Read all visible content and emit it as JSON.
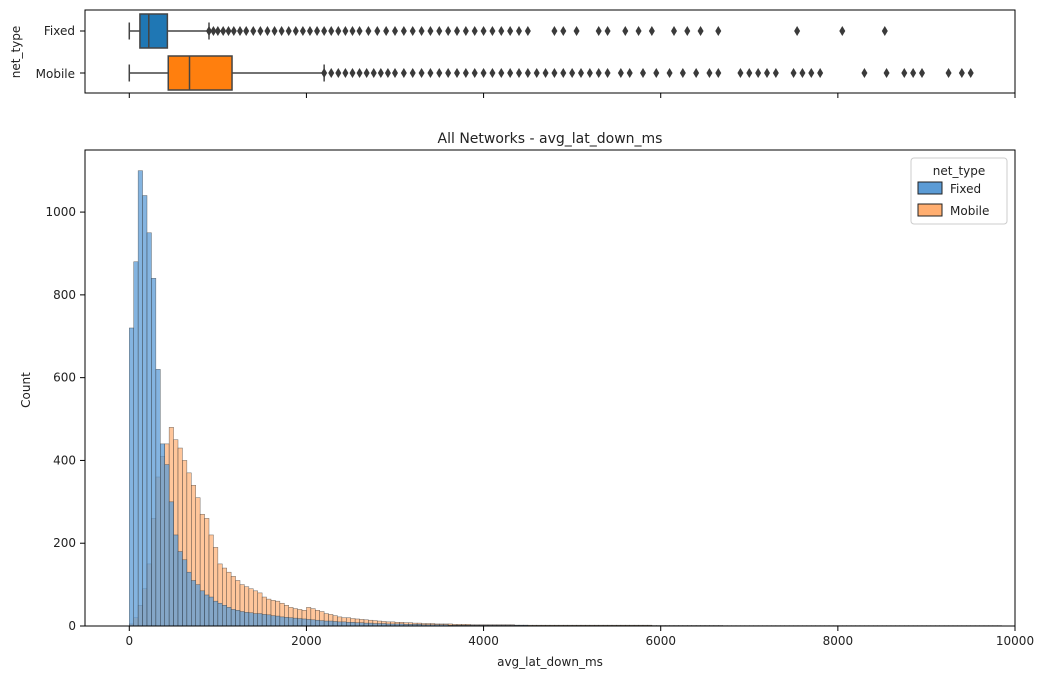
{
  "chart_data": [
    {
      "type": "box",
      "title": "",
      "xlabel": "",
      "ylabel": "net_type",
      "categories": [
        "Fixed",
        "Mobile"
      ],
      "xlim": [
        -500,
        10000
      ],
      "boxes": [
        {
          "name": "Fixed",
          "color": "#1f77b4",
          "min": 0,
          "q1": 120,
          "median": 220,
          "q3": 430,
          "whisker_high": 900,
          "outliers": [
            900,
            950,
            1000,
            1060,
            1120,
            1180,
            1250,
            1320,
            1400,
            1480,
            1560,
            1640,
            1720,
            1800,
            1880,
            1960,
            2040,
            2120,
            2200,
            2280,
            2360,
            2440,
            2520,
            2600,
            2700,
            2800,
            2900,
            3000,
            3100,
            3200,
            3300,
            3400,
            3500,
            3600,
            3700,
            3800,
            3900,
            4000,
            4100,
            4200,
            4300,
            4400,
            4500,
            4800,
            4900,
            5050,
            5300,
            5400,
            5600,
            5750,
            5900,
            6150,
            6300,
            6450,
            6650,
            7540,
            8050,
            8530
          ]
        },
        {
          "name": "Mobile",
          "color": "#ff7f0e",
          "min": 0,
          "q1": 440,
          "median": 680,
          "q3": 1160,
          "whisker_high": 2200,
          "outliers": [
            2200,
            2280,
            2360,
            2440,
            2520,
            2600,
            2680,
            2760,
            2840,
            2920,
            3000,
            3100,
            3200,
            3300,
            3400,
            3500,
            3600,
            3700,
            3800,
            3900,
            4000,
            4100,
            4200,
            4300,
            4400,
            4500,
            4600,
            4700,
            4800,
            4900,
            5000,
            5100,
            5200,
            5300,
            5400,
            5550,
            5650,
            5800,
            5950,
            6100,
            6250,
            6400,
            6550,
            6650,
            6900,
            7000,
            7100,
            7200,
            7300,
            7500,
            7600,
            7700,
            7800,
            8300,
            8550,
            8750,
            8850,
            8950,
            9250,
            9400,
            9500
          ]
        }
      ],
      "axis_ticks": [
        "0",
        "2000",
        "4000",
        "6000",
        "8000",
        "10000"
      ]
    },
    {
      "type": "bar",
      "title": "All Networks - avg_lat_down_ms",
      "xlabel": "avg_lat_down_ms",
      "ylabel": "Count",
      "xlim": [
        -500,
        10000
      ],
      "ylim": [
        0,
        1150
      ],
      "xticks": [
        0,
        2000,
        4000,
        6000,
        8000,
        10000
      ],
      "xtick_labels": [
        "0",
        "2000",
        "4000",
        "6000",
        "8000",
        "10000"
      ],
      "yticks": [
        0,
        200,
        400,
        600,
        800,
        1000
      ],
      "ytick_labels": [
        "0",
        "200",
        "400",
        "600",
        "800",
        "1000"
      ],
      "bin_start": 0,
      "bin_width": 50,
      "legend": {
        "title": "net_type",
        "position": "top-right",
        "entries": [
          "Fixed",
          "Mobile"
        ]
      },
      "series": [
        {
          "name": "Fixed",
          "color": "#5b9bd5",
          "values": [
            720,
            880,
            1100,
            1040,
            950,
            840,
            620,
            440,
            390,
            300,
            220,
            180,
            160,
            130,
            110,
            100,
            85,
            75,
            70,
            60,
            55,
            50,
            45,
            40,
            38,
            35,
            33,
            32,
            30,
            30,
            28,
            27,
            25,
            24,
            22,
            21,
            20,
            19,
            18,
            17,
            16,
            15,
            14,
            13,
            12,
            12,
            11,
            10,
            10,
            9,
            9,
            8,
            8,
            7,
            7,
            6,
            6,
            6,
            5,
            5,
            5,
            5,
            4,
            4,
            4,
            4,
            3,
            3,
            3,
            3,
            3,
            3,
            2,
            2,
            2,
            2,
            2,
            2,
            2,
            2,
            2,
            2,
            2,
            2,
            2,
            2,
            2,
            2,
            2,
            2,
            1,
            1,
            1,
            1,
            1,
            1,
            1,
            1,
            1,
            1,
            1,
            1,
            1,
            1,
            1,
            1,
            1,
            1,
            1,
            1,
            1,
            1,
            1,
            1,
            1,
            1,
            1,
            1,
            1,
            1,
            1,
            1,
            1,
            1,
            1,
            1,
            1,
            1,
            1,
            1,
            1,
            1,
            1,
            1,
            0,
            0,
            0,
            0,
            0,
            0,
            0,
            0,
            0,
            0,
            0,
            0,
            0,
            0,
            0,
            0,
            0,
            0,
            0,
            0,
            0,
            0,
            0,
            0,
            0,
            0,
            0,
            0,
            0,
            0,
            0,
            0,
            0,
            0,
            0,
            0,
            0,
            0,
            0,
            0,
            0,
            0,
            0,
            0,
            0,
            0,
            0,
            0,
            0,
            0,
            0,
            0,
            0,
            0,
            0,
            0,
            0,
            0,
            0,
            0,
            0,
            0,
            0,
            0,
            0,
            0,
            0
          ]
        },
        {
          "name": "Mobile",
          "color": "#ffae70",
          "values": [
            5,
            20,
            50,
            90,
            150,
            260,
            360,
            410,
            440,
            480,
            450,
            430,
            400,
            370,
            340,
            310,
            270,
            260,
            220,
            190,
            150,
            140,
            130,
            120,
            110,
            100,
            95,
            90,
            85,
            80,
            70,
            65,
            62,
            60,
            55,
            50,
            45,
            42,
            40,
            38,
            45,
            42,
            38,
            35,
            30,
            28,
            25,
            22,
            20,
            20,
            18,
            17,
            16,
            15,
            14,
            13,
            12,
            11,
            10,
            10,
            9,
            9,
            8,
            8,
            7,
            7,
            6,
            6,
            6,
            5,
            5,
            5,
            5,
            4,
            4,
            4,
            4,
            3,
            3,
            3,
            3,
            3,
            3,
            3,
            3,
            3,
            3,
            2,
            2,
            2,
            2,
            2,
            2,
            2,
            2,
            2,
            2,
            2,
            2,
            2,
            2,
            2,
            2,
            2,
            2,
            2,
            2,
            2,
            2,
            2,
            2,
            2,
            2,
            2,
            2,
            2,
            2,
            2,
            1,
            1,
            1,
            1,
            1,
            1,
            1,
            1,
            1,
            1,
            1,
            1,
            1,
            1,
            1,
            1,
            1,
            1,
            1,
            1,
            1,
            1,
            1,
            1,
            1,
            1,
            1,
            1,
            1,
            1,
            1,
            1,
            1,
            1,
            1,
            1,
            1,
            1,
            1,
            1,
            1,
            1,
            1,
            1,
            1,
            1,
            1,
            1,
            1,
            1,
            1,
            1,
            1,
            1,
            1,
            1,
            1,
            1,
            1,
            1,
            1,
            1,
            1,
            1,
            1,
            1,
            1,
            1,
            1,
            1,
            1,
            1,
            1,
            1,
            1,
            1,
            1,
            1,
            1
          ]
        }
      ]
    }
  ]
}
